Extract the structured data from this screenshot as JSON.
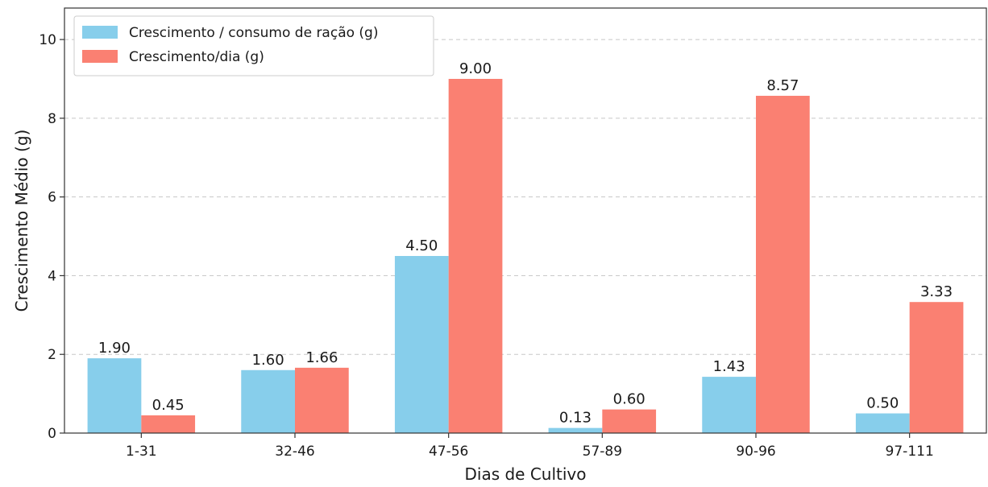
{
  "chart_data": {
    "type": "bar",
    "title": "",
    "xlabel": "Dias de Cultivo",
    "ylabel": "Crescimento Médio (g)",
    "categories": [
      "1-31",
      "32-46",
      "47-56",
      "57-89",
      "90-96",
      "97-111"
    ],
    "series": [
      {
        "name": "Crescimento / consumo de ração (g)",
        "color": "#87CEEB",
        "values": [
          1.9,
          1.6,
          4.5,
          0.13,
          1.43,
          0.5
        ],
        "labels": [
          "1.90",
          "1.60",
          "4.50",
          "0.13",
          "1.43",
          "0.50"
        ]
      },
      {
        "name": "Crescimento/dia (g)",
        "color": "#FA8072",
        "values": [
          0.45,
          1.66,
          9.0,
          0.6,
          8.57,
          3.33
        ],
        "labels": [
          "0.45",
          "1.66",
          "9.00",
          "0.60",
          "8.57",
          "3.33"
        ]
      }
    ],
    "ylim": [
      0,
      10.8
    ],
    "yticks": [
      0,
      2,
      4,
      6,
      8,
      10
    ],
    "ytick_labels": [
      "0",
      "2",
      "4",
      "6",
      "8",
      "10"
    ],
    "grid": "horizontal dashed",
    "legend_position": "top-left"
  }
}
